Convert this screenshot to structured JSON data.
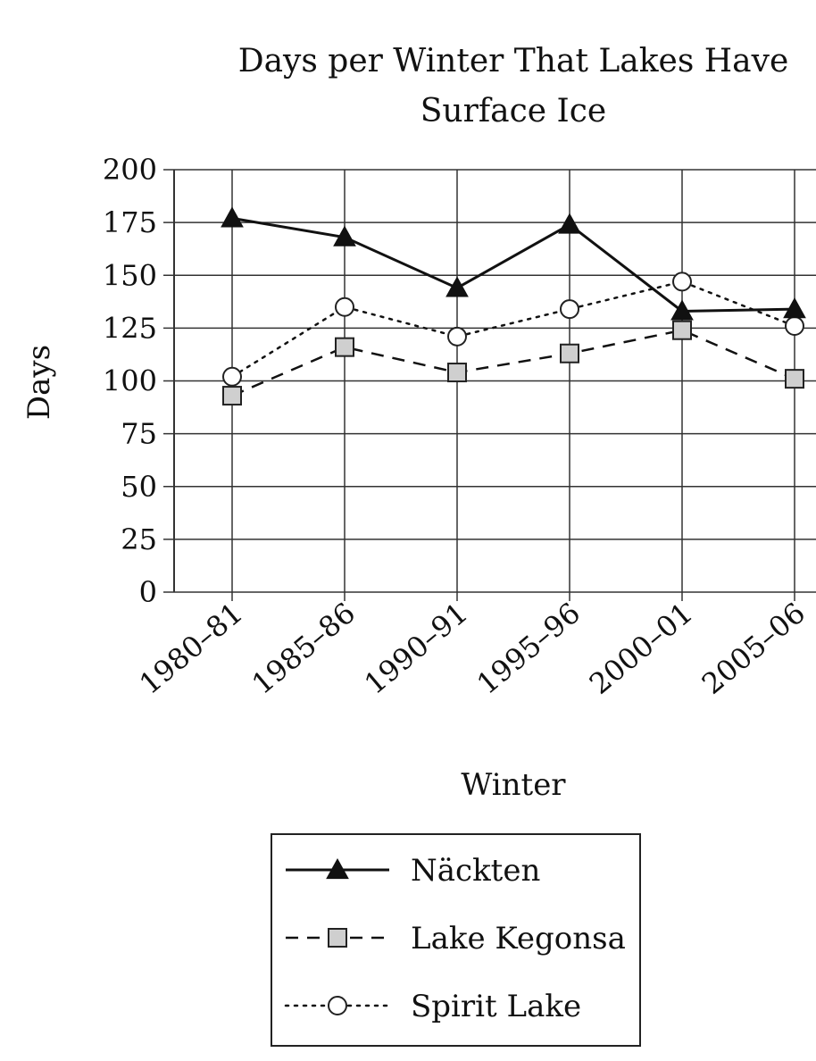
{
  "chart_data": {
    "type": "line",
    "title_line1": "Days per Winter That Lakes Have",
    "title_line2": "Surface Ice",
    "xlabel": "Winter",
    "ylabel": "Days",
    "categories": [
      "1980–81",
      "1985–86",
      "1990–91",
      "1995–96",
      "2000–01",
      "2005–06"
    ],
    "ylim": [
      0,
      200
    ],
    "yticks": [
      0,
      25,
      50,
      75,
      100,
      125,
      150,
      175,
      200
    ],
    "grid": true,
    "legend_position": "bottom-center",
    "series": [
      {
        "name": "Näckten",
        "marker": "triangle",
        "style": "solid",
        "values": [
          177,
          168,
          144,
          174,
          133,
          134
        ]
      },
      {
        "name": "Lake Kegonsa",
        "marker": "square",
        "style": "dashed",
        "values": [
          93,
          116,
          104,
          113,
          124,
          101
        ]
      },
      {
        "name": "Spirit Lake",
        "marker": "circle",
        "style": "dotted",
        "values": [
          102,
          135,
          121,
          134,
          147,
          126
        ]
      }
    ]
  }
}
